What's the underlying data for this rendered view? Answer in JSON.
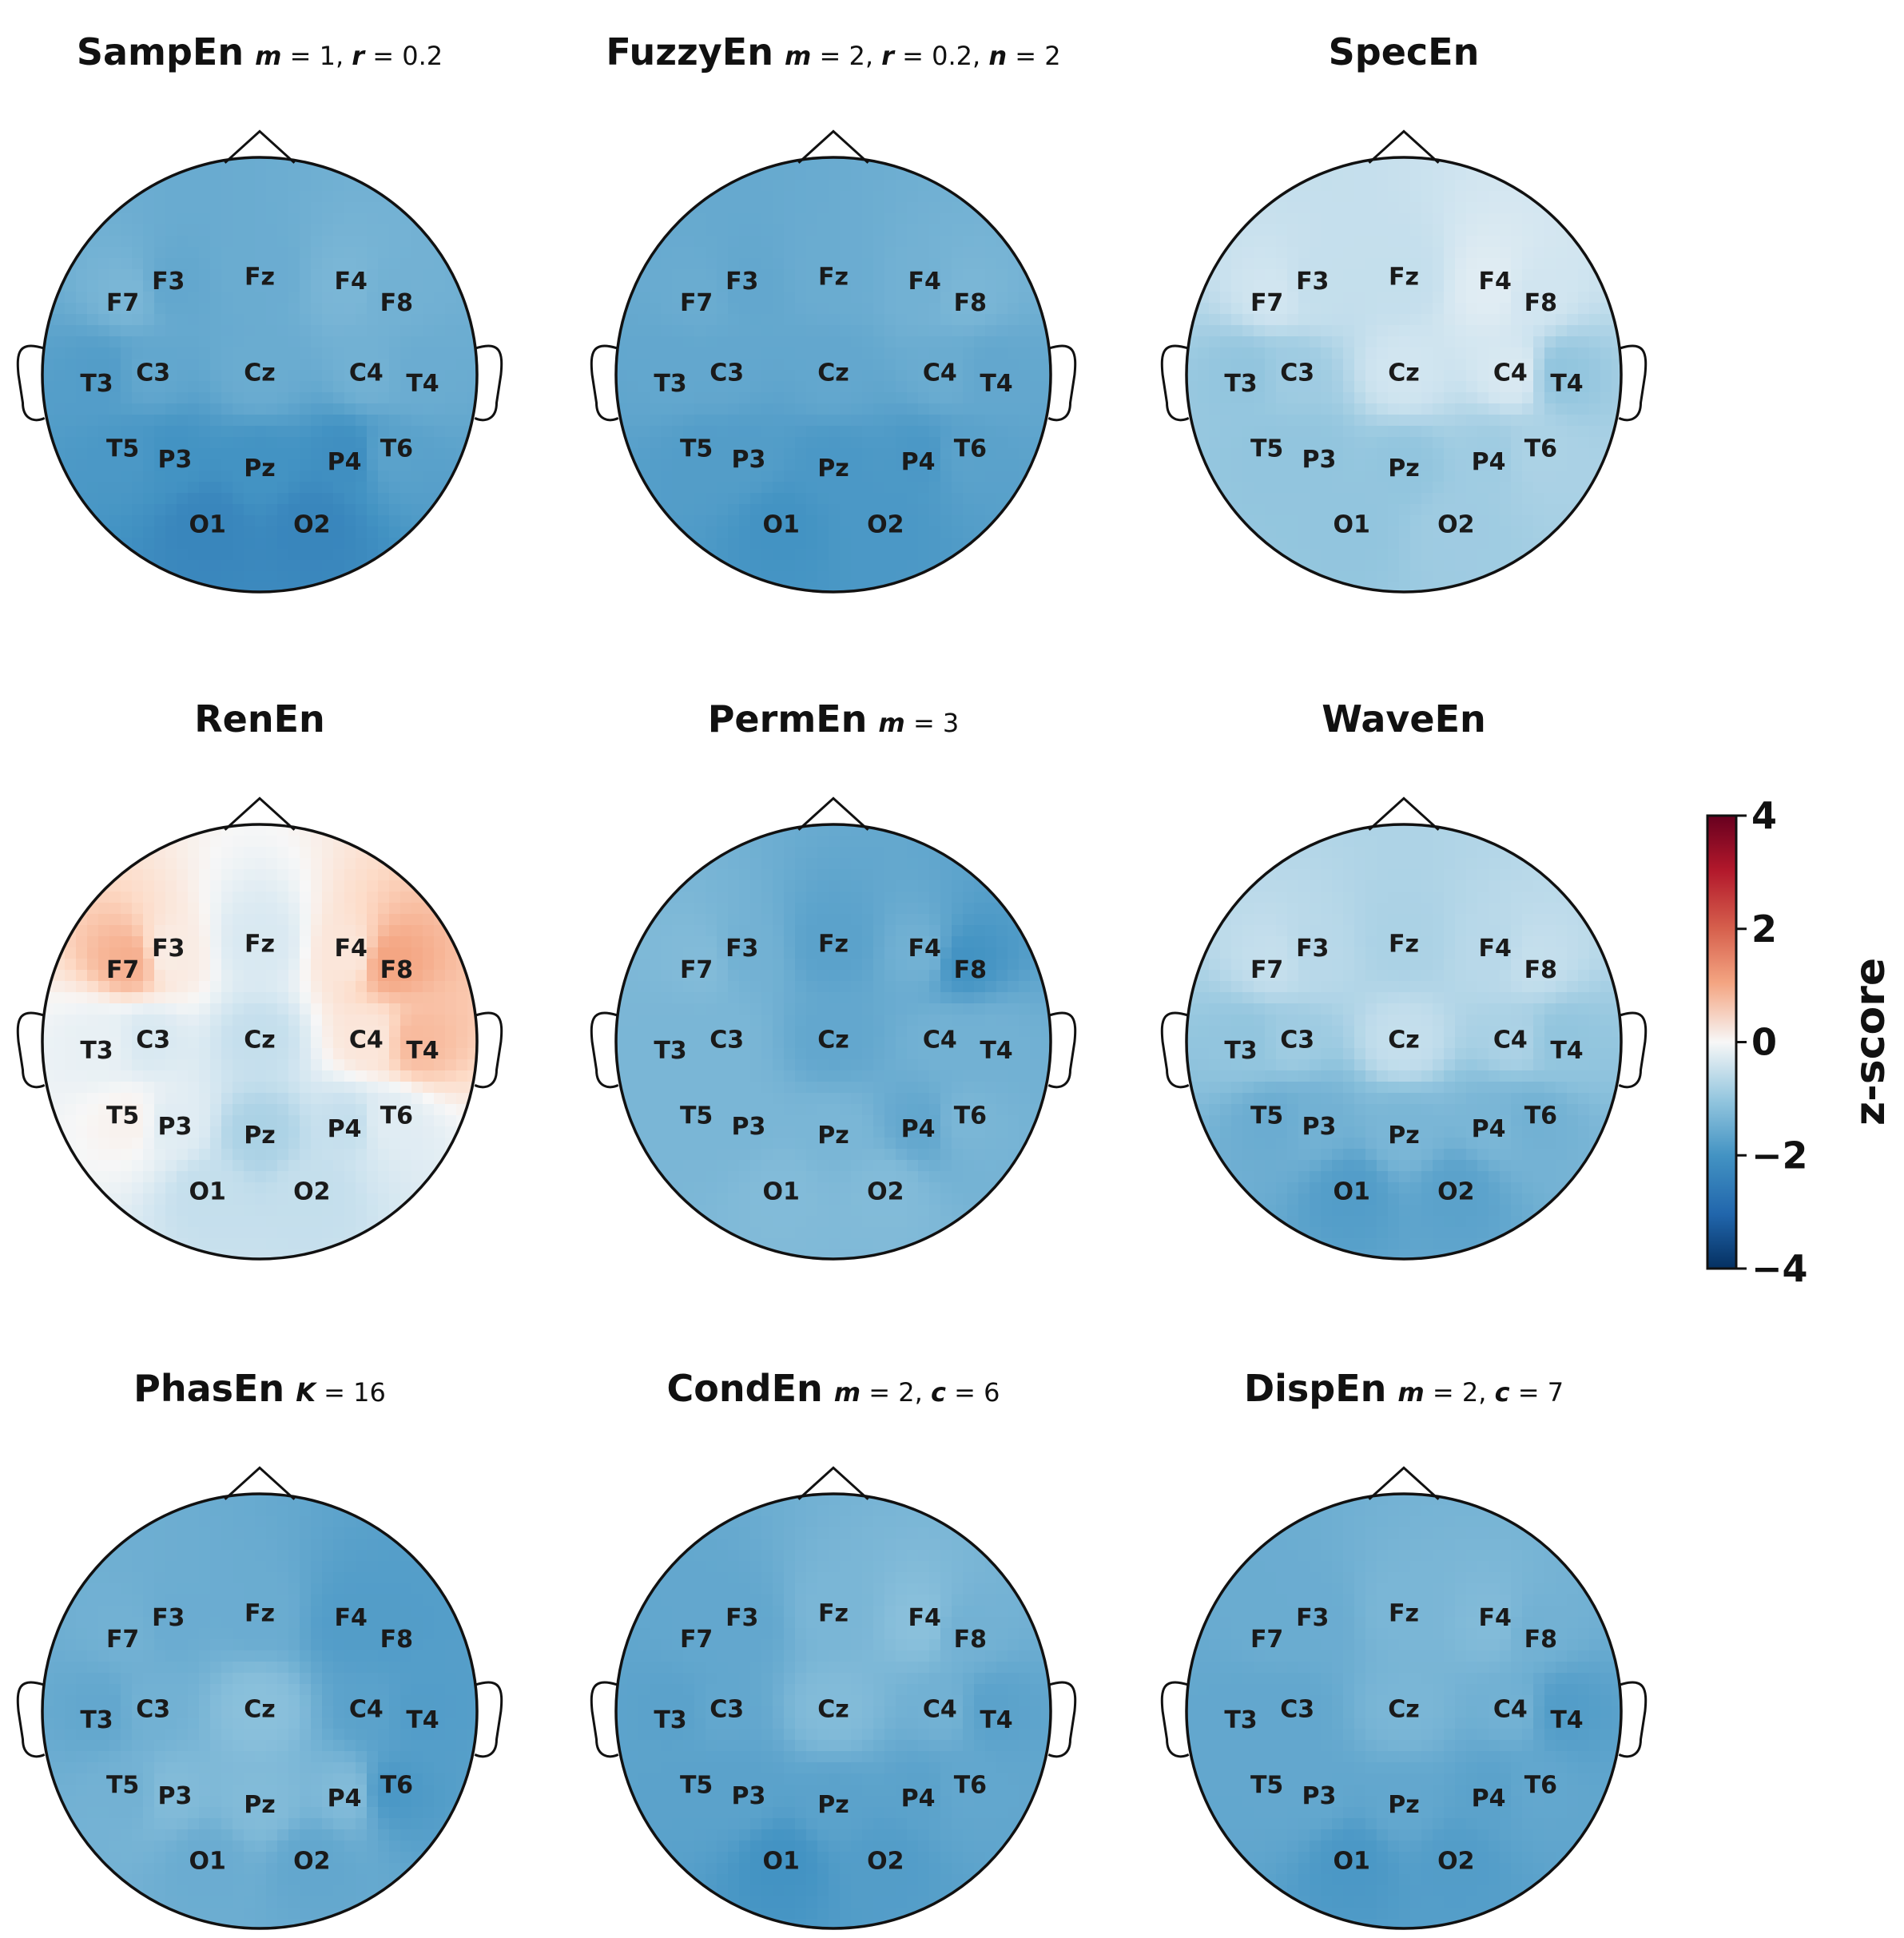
{
  "chart_data": {
    "type": "topomap",
    "colormap": {
      "name": "RdBu_r",
      "low": "#2166ac",
      "mid": "#f7f7f7",
      "high": "#b2182b",
      "min": -4,
      "max": 4
    },
    "colorbar": {
      "label": "z-score",
      "ticks": [
        "4",
        "2",
        "0",
        "−2",
        "−4"
      ],
      "tick_values": [
        4,
        2,
        0,
        -2,
        -4
      ]
    },
    "electrodes": [
      "F7",
      "F3",
      "Fz",
      "F4",
      "F8",
      "T3",
      "C3",
      "Cz",
      "C4",
      "T4",
      "T5",
      "P3",
      "Pz",
      "P4",
      "T6",
      "O1",
      "O2"
    ],
    "panels": [
      {
        "name": "SampEn",
        "params": [
          {
            "var": "m",
            "val": "1"
          },
          {
            "var": "r",
            "val": "0.2"
          }
        ],
        "values": [
          -1.3,
          -1.6,
          -1.5,
          -1.3,
          -1.4,
          -1.8,
          -1.6,
          -1.5,
          -1.4,
          -1.5,
          -1.9,
          -2.0,
          -2.0,
          -2.1,
          -1.7,
          -2.3,
          -2.3
        ]
      },
      {
        "name": "FuzzyEn",
        "params": [
          {
            "var": "m",
            "val": "2"
          },
          {
            "var": "r",
            "val": "0.2"
          },
          {
            "var": "n",
            "val": "2"
          }
        ],
        "values": [
          -1.5,
          -1.6,
          -1.5,
          -1.4,
          -1.3,
          -1.6,
          -1.6,
          -1.6,
          -1.5,
          -1.6,
          -1.8,
          -1.8,
          -1.9,
          -1.9,
          -1.7,
          -2.0,
          -1.9
        ]
      },
      {
        "name": "SpecEn",
        "params": [],
        "values": [
          -0.5,
          -0.6,
          -0.6,
          -0.3,
          -0.5,
          -1.0,
          -0.9,
          -0.5,
          -0.4,
          -1.0,
          -1.0,
          -1.0,
          -1.0,
          -0.9,
          -0.8,
          -1.0,
          -0.9
        ]
      },
      {
        "name": "RenEn",
        "params": [],
        "values": [
          0.9,
          0.2,
          -0.4,
          0.3,
          1.0,
          -0.2,
          -0.4,
          -0.6,
          0.3,
          0.8,
          0.1,
          -0.3,
          -0.8,
          -0.6,
          -0.3,
          -0.6,
          -0.6
        ]
      },
      {
        "name": "PermEn",
        "params": [
          {
            "var": "m",
            "val": "3"
          }
        ],
        "values": [
          -1.2,
          -1.4,
          -1.7,
          -1.4,
          -2.0,
          -1.3,
          -1.3,
          -1.6,
          -1.4,
          -1.4,
          -1.3,
          -1.3,
          -1.3,
          -1.6,
          -1.3,
          -1.2,
          -1.2
        ]
      },
      {
        "name": "WaveEn",
        "params": [],
        "values": [
          -0.6,
          -0.7,
          -0.8,
          -0.7,
          -0.6,
          -1.0,
          -0.9,
          -0.6,
          -0.8,
          -1.0,
          -1.5,
          -1.4,
          -1.3,
          -1.3,
          -1.4,
          -1.8,
          -1.7
        ]
      },
      {
        "name": "PhasEn",
        "params": [
          {
            "var": "K",
            "val": "16"
          }
        ],
        "values": [
          -1.4,
          -1.5,
          -1.5,
          -1.8,
          -1.8,
          -1.6,
          -1.4,
          -1.1,
          -1.7,
          -1.8,
          -1.4,
          -1.2,
          -1.2,
          -1.2,
          -1.9,
          -1.5,
          -1.6
        ]
      },
      {
        "name": "CondEn",
        "params": [
          {
            "var": "m",
            "val": "2"
          },
          {
            "var": "c",
            "val": "6"
          }
        ],
        "values": [
          -1.6,
          -1.6,
          -1.3,
          -1.1,
          -1.4,
          -1.7,
          -1.6,
          -1.2,
          -1.4,
          -1.7,
          -1.7,
          -1.7,
          -1.7,
          -1.7,
          -1.6,
          -2.0,
          -1.8
        ]
      },
      {
        "name": "DispEn",
        "params": [
          {
            "var": "m",
            "val": "2"
          },
          {
            "var": "c",
            "val": "7"
          }
        ],
        "values": [
          -1.5,
          -1.5,
          -1.3,
          -1.2,
          -1.4,
          -1.6,
          -1.6,
          -1.3,
          -1.4,
          -1.8,
          -1.6,
          -1.6,
          -1.6,
          -1.7,
          -1.6,
          -1.9,
          -1.8
        ]
      }
    ]
  }
}
